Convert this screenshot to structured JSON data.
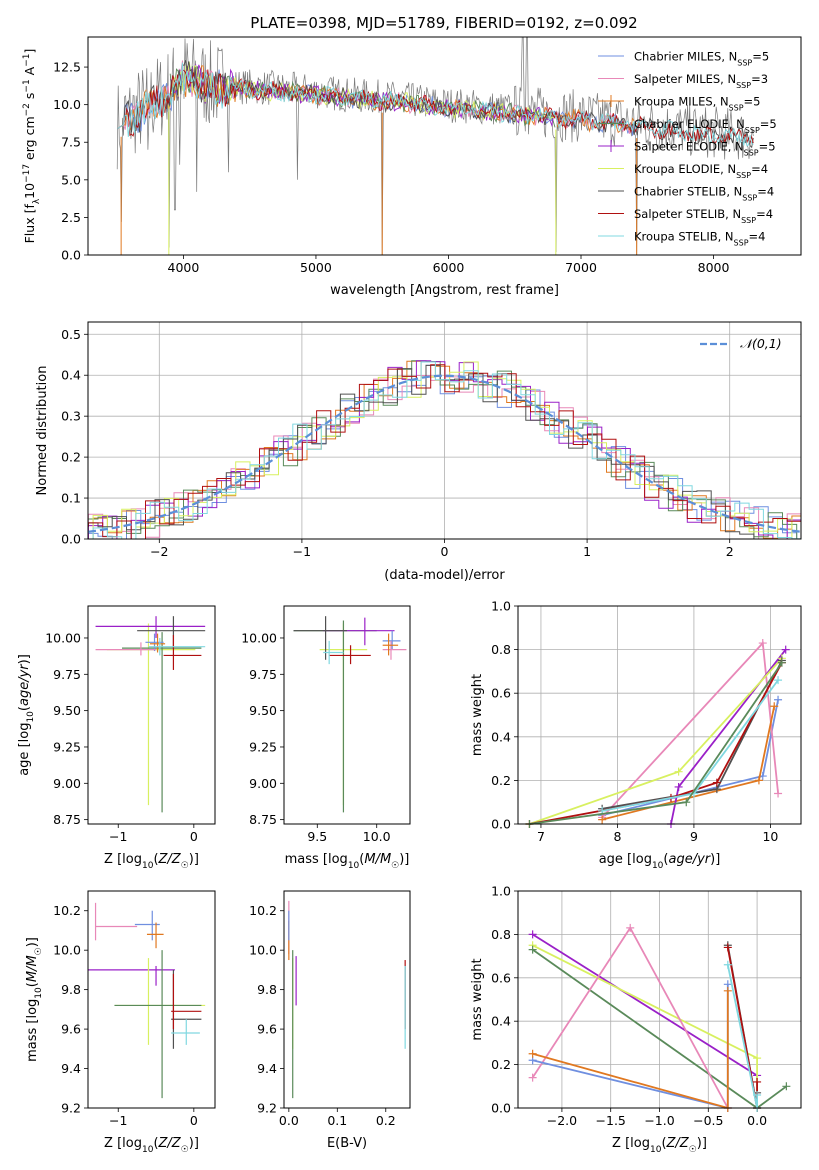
{
  "figure_title": "PLATE=0398, MJD=51789, FIBERID=0192, z=0.092",
  "colors": {
    "chabrier_miles": "#6f8fe0",
    "salpeter_miles": "#e888b8",
    "kroupa_miles": "#e07820",
    "chabrier_elodie": "#5a8a5a",
    "salpeter_elodie": "#9a20c8",
    "kroupa_elodie": "#d8f060",
    "chabrier_stelib": "#505050",
    "salpeter_stelib": "#b01010",
    "kroupa_stelib": "#80d8e0",
    "normal_curve": "#5b8fd8",
    "grid": "#b0b0b0"
  },
  "chart_data": [
    {
      "id": "spectrum",
      "type": "line",
      "title": "PLATE=0398, MJD=51789, FIBERID=0192, z=0.092",
      "xlabel": "wavelength [Angstrom, rest frame]",
      "ylabel": "Flux [f_λ 10^-17 erg cm^-2 s^-1 A^-1]",
      "xlim": [
        3280,
        8660
      ],
      "ylim": [
        0,
        14.5
      ],
      "xticks": [
        4000,
        5000,
        6000,
        7000,
        8000
      ],
      "yticks": [
        0.0,
        2.5,
        5.0,
        7.5,
        10.0,
        12.5
      ],
      "grid": false,
      "legend": "top-right",
      "legend_entries": [
        "Chabrier MILES, N_SSP=5",
        "Salpeter MILES, N_SSP=3",
        "Kroupa MILES, N_SSP=5",
        "Chabrier ELODIE, N_SSP=5",
        "Salpeter ELODIE, N_SSP=5",
        "Kroupa ELODIE, N_SSP=4",
        "Chabrier STELIB, N_SSP=4",
        "Salpeter STELIB, N_SSP=4",
        "Kroupa STELIB, N_SSP=4"
      ],
      "continuum": [
        [
          3500,
          8.7
        ],
        [
          3700,
          9.8
        ],
        [
          3900,
          11.0
        ],
        [
          4000,
          12.0
        ],
        [
          4200,
          11.3
        ],
        [
          4500,
          11.2
        ],
        [
          4800,
          11.0
        ],
        [
          5000,
          10.9
        ],
        [
          5300,
          10.6
        ],
        [
          5600,
          10.4
        ],
        [
          6000,
          10.0
        ],
        [
          6300,
          9.8
        ],
        [
          6600,
          9.5
        ],
        [
          7000,
          9.2
        ],
        [
          7400,
          8.8
        ],
        [
          7800,
          8.3
        ],
        [
          8300,
          7.9
        ]
      ],
      "absorption_dips": [
        [
          3530,
          2.2
        ],
        [
          3730,
          7.0
        ],
        [
          3890,
          0.5
        ],
        [
          3935,
          3.0
        ],
        [
          3970,
          6.0
        ],
        [
          4100,
          4.2
        ],
        [
          4340,
          5.5
        ],
        [
          4860,
          5.0
        ],
        [
          5500,
          0.0
        ],
        [
          6810,
          0.2
        ],
        [
          7420,
          0.0
        ]
      ]
    },
    {
      "id": "residuals",
      "type": "histogram",
      "xlabel": "(data-model)/error",
      "ylabel": "Normed distribution",
      "xlim": [
        -2.5,
        2.5
      ],
      "ylim": [
        0,
        0.53
      ],
      "xticks": [
        -2,
        -1,
        0,
        1,
        2
      ],
      "yticks": [
        0.0,
        0.1,
        0.2,
        0.3,
        0.4,
        0.5
      ],
      "grid": true,
      "legend": "top-right",
      "legend_entries": [
        "𝒩(0,1)"
      ],
      "bin_width": 0.1
    },
    {
      "id": "age_vs_Z",
      "type": "errorbar",
      "xlabel": "Z [log10(Z/Z☉)]",
      "ylabel": "age  [log10(age/yr)]",
      "xlim": [
        -1.4,
        0.28
      ],
      "ylim": [
        8.72,
        10.22
      ],
      "xticks": [
        -1,
        0
      ],
      "yticks": [
        8.75,
        9.0,
        9.25,
        9.5,
        9.75,
        10.0
      ],
      "points": [
        {
          "c": "kroupa_elodie",
          "x": -0.6,
          "y": 9.92,
          "xe": [
            -1.15,
            0.02
          ],
          "ye": [
            8.85,
            10.1
          ]
        },
        {
          "c": "chabrier_elodie",
          "x": -0.42,
          "y": 9.93,
          "xe": [
            -0.95,
            0.1
          ],
          "ye": [
            8.8,
            10.04
          ]
        },
        {
          "c": "salpeter_elodie",
          "x": -0.5,
          "y": 10.08,
          "xe": [
            -1.3,
            0.15
          ],
          "ye": [
            10.0,
            10.15
          ]
        },
        {
          "c": "chabrier_miles",
          "x": -0.52,
          "y": 9.97,
          "xe": [
            -0.64,
            -0.4
          ],
          "ye": [
            9.91,
            10.03
          ]
        },
        {
          "c": "salpeter_miles",
          "x": -0.7,
          "y": 9.92,
          "xe": [
            -1.3,
            -0.5
          ],
          "ye": [
            9.88,
            9.97
          ]
        },
        {
          "c": "kroupa_miles",
          "x": -0.48,
          "y": 9.96,
          "xe": [
            -0.58,
            -0.38
          ],
          "ye": [
            9.9,
            10.03
          ]
        },
        {
          "c": "chabrier_stelib",
          "x": -0.27,
          "y": 10.05,
          "xe": [
            -0.75,
            0.15
          ],
          "ye": [
            9.93,
            10.15
          ]
        },
        {
          "c": "salpeter_stelib",
          "x": -0.27,
          "y": 9.88,
          "xe": [
            -0.4,
            0.1
          ],
          "ye": [
            9.78,
            10.02
          ]
        },
        {
          "c": "kroupa_stelib",
          "x": -0.45,
          "y": 9.94,
          "xe": [
            -0.6,
            0.15
          ],
          "ye": [
            9.88,
            10.0
          ]
        }
      ]
    },
    {
      "id": "age_vs_mass",
      "type": "errorbar",
      "xlabel": "mass [log10(M/M☉)]",
      "ylabel": "",
      "xlim": [
        9.22,
        10.28
      ],
      "ylim": [
        8.72,
        10.22
      ],
      "xticks": [
        9.5,
        10.0
      ],
      "yticks": [
        8.75,
        9.0,
        9.25,
        9.5,
        9.75,
        10.0
      ],
      "points": [
        {
          "c": "kroupa_elodie",
          "x": 9.72,
          "y": 9.92,
          "xe": [
            9.52,
            9.92
          ],
          "ye": [
            8.85,
            10.1
          ]
        },
        {
          "c": "chabrier_elodie",
          "x": 9.72,
          "y": 10.05,
          "xe": [
            9.3,
            10.0
          ],
          "ye": [
            8.8,
            10.12
          ]
        },
        {
          "c": "salpeter_elodie",
          "x": 9.9,
          "y": 10.05,
          "xe": [
            9.55,
            10.15
          ],
          "ye": [
            9.95,
            10.14
          ]
        },
        {
          "c": "chabrier_miles",
          "x": 10.13,
          "y": 9.98,
          "xe": [
            10.05,
            10.2
          ],
          "ye": [
            9.92,
            10.05
          ]
        },
        {
          "c": "salpeter_miles",
          "x": 10.12,
          "y": 9.92,
          "xe": [
            10.05,
            10.25
          ],
          "ye": [
            9.85,
            9.98
          ]
        },
        {
          "c": "kroupa_miles",
          "x": 10.1,
          "y": 9.95,
          "xe": [
            10.05,
            10.18
          ],
          "ye": [
            9.88,
            10.03
          ]
        },
        {
          "c": "chabrier_stelib",
          "x": 9.57,
          "y": 10.05,
          "xe": [
            9.3,
            9.75
          ],
          "ye": [
            9.85,
            10.15
          ]
        },
        {
          "c": "salpeter_stelib",
          "x": 9.78,
          "y": 9.88,
          "xe": [
            9.6,
            9.95
          ],
          "ye": [
            9.82,
            9.95
          ]
        },
        {
          "c": "kroupa_stelib",
          "x": 9.6,
          "y": 9.9,
          "xe": [
            9.55,
            9.72
          ],
          "ye": [
            9.82,
            9.98
          ]
        }
      ]
    },
    {
      "id": "weight_vs_age",
      "type": "line",
      "xlabel": "age  [log10(age/yr)]",
      "ylabel": "mass weight",
      "xlim": [
        6.7,
        10.4
      ],
      "ylim": [
        0,
        1
      ],
      "xticks": [
        7,
        8,
        9,
        10
      ],
      "yticks": [
        0.0,
        0.2,
        0.4,
        0.6,
        0.8,
        1.0
      ],
      "grid": true,
      "series": [
        {
          "c": "chabrier_miles",
          "x": [
            7.8,
            9.9,
            10.1
          ],
          "y": [
            0.04,
            0.22,
            0.57
          ]
        },
        {
          "c": "salpeter_miles",
          "x": [
            7.8,
            9.9,
            10.1
          ],
          "y": [
            0.03,
            0.83,
            0.14
          ]
        },
        {
          "c": "kroupa_miles",
          "x": [
            7.8,
            9.85,
            10.05
          ],
          "y": [
            0.02,
            0.2,
            0.54
          ]
        },
        {
          "c": "chabrier_elodie",
          "x": 6.85,
          "y": 0
        },
        {
          "c": "salpeter_elodie",
          "x": [
            8.7,
            8.8,
            10.2
          ],
          "y": [
            0.0,
            0.17,
            0.8
          ]
        },
        {
          "c": "kroupa_elodie",
          "x": [
            6.85,
            8.8,
            10.15
          ],
          "y": [
            0.0,
            0.24,
            0.76
          ]
        },
        {
          "c": "chabrier_stelib",
          "x": [
            7.8,
            9.3,
            10.15
          ],
          "y": [
            0.07,
            0.16,
            0.75
          ]
        },
        {
          "c": "salpeter_stelib",
          "x": [
            6.85,
            8.7,
            9.3,
            10.15
          ],
          "y": [
            0.0,
            0.12,
            0.19,
            0.74
          ]
        },
        {
          "c": "kroupa_stelib",
          "x": [
            7.8,
            9.0,
            10.1
          ],
          "y": [
            0.06,
            0.14,
            0.66
          ]
        }
      ],
      "green_series": {
        "x": [
          6.85,
          8.9,
          10.15
        ],
        "y": [
          0.0,
          0.1,
          0.74
        ]
      }
    },
    {
      "id": "mass_vs_Z",
      "type": "errorbar",
      "xlabel": "Z [log10(Z/Z☉)]",
      "ylabel": "mass [log10(M/M☉)]",
      "xlim": [
        -1.4,
        0.28
      ],
      "ylim": [
        9.2,
        10.3
      ],
      "xticks": [
        -1,
        0
      ],
      "yticks": [
        9.2,
        9.4,
        9.6,
        9.8,
        10.0,
        10.2
      ],
      "points": [
        {
          "c": "salpeter_miles",
          "x": -1.3,
          "y": 10.12,
          "xe": [
            -1.3,
            -0.75
          ],
          "ye": [
            10.05,
            10.24
          ]
        },
        {
          "c": "chabrier_miles",
          "x": -0.55,
          "y": 10.13,
          "xe": [
            -0.78,
            -0.45
          ],
          "ye": [
            10.05,
            10.2
          ]
        },
        {
          "c": "kroupa_miles",
          "x": -0.5,
          "y": 10.08,
          "xe": [
            -0.62,
            -0.4
          ],
          "ye": [
            10.01,
            10.14
          ]
        },
        {
          "c": "salpeter_elodie",
          "x": -0.5,
          "y": 9.9,
          "xe": [
            -1.4,
            -0.25
          ],
          "ye": [
            9.82,
            9.92
          ]
        },
        {
          "c": "kroupa_elodie",
          "x": -0.6,
          "y": 9.72,
          "xe": [
            -1.05,
            0.15
          ],
          "ye": [
            9.52,
            9.96
          ]
        },
        {
          "c": "chabrier_elodie",
          "x": -0.42,
          "y": 9.72,
          "xe": [
            -1.05,
            0.1
          ],
          "ye": [
            9.25,
            10.0
          ]
        },
        {
          "c": "chabrier_stelib",
          "x": -0.27,
          "y": 9.65,
          "xe": [
            -0.3,
            0.1
          ],
          "ye": [
            9.5,
            9.9
          ]
        },
        {
          "c": "salpeter_stelib",
          "x": -0.27,
          "y": 9.69,
          "xe": [
            -0.3,
            0.1
          ],
          "ye": [
            9.6,
            9.88
          ]
        },
        {
          "c": "kroupa_stelib",
          "x": -0.1,
          "y": 9.58,
          "xe": [
            -0.3,
            0.08
          ],
          "ye": [
            9.52,
            9.65
          ]
        }
      ]
    },
    {
      "id": "mass_vs_EBV",
      "type": "errorbar",
      "xlabel": "E(B-V)",
      "ylabel": "",
      "xlim": [
        -0.01,
        0.25
      ],
      "ylim": [
        9.2,
        10.3
      ],
      "xticks": [
        0.0,
        0.1,
        0.2
      ],
      "yticks": [
        9.2,
        9.4,
        9.6,
        9.8,
        10.0,
        10.2
      ],
      "points": [
        {
          "c": "salpeter_miles",
          "x": 0.0,
          "y": 10.1,
          "ye": [
            9.98,
            10.25
          ]
        },
        {
          "c": "kroupa_miles",
          "x": 0.0,
          "y": 10.05,
          "ye": [
            9.95,
            10.15
          ]
        },
        {
          "c": "kroupa_elodie",
          "x": 0.008,
          "y": 9.72,
          "ye": [
            9.5,
            9.96
          ]
        },
        {
          "c": "chabrier_elodie",
          "x": 0.008,
          "y": 9.72,
          "ye": [
            9.25,
            10.0
          ]
        },
        {
          "c": "salpeter_elodie",
          "x": 0.015,
          "y": 9.9,
          "ye": [
            9.72,
            9.97
          ]
        },
        {
          "c": "salpeter_stelib",
          "x": 0.24,
          "y": 9.8,
          "ye": [
            9.6,
            9.95
          ]
        },
        {
          "c": "kroupa_stelib",
          "x": 0.24,
          "y": 9.58,
          "ye": [
            9.5,
            9.92
          ]
        },
        {
          "c": "chabrier_miles",
          "x": 0.0,
          "y": 10.13,
          "ye": [
            10.05,
            10.2
          ]
        }
      ]
    },
    {
      "id": "weight_vs_Z",
      "type": "line",
      "xlabel": "Z [log10(Z/Z☉)]",
      "ylabel": "mass weight",
      "xlim": [
        -2.45,
        0.45
      ],
      "ylim": [
        0,
        1
      ],
      "xticks": [
        -2.0,
        -1.5,
        -1.0,
        -0.5,
        0.0
      ],
      "yticks": [
        0.0,
        0.2,
        0.4,
        0.6,
        0.8,
        1.0
      ],
      "grid": true,
      "series": [
        {
          "c": "salpeter_elodie",
          "x": [
            -2.3,
            0.0,
            0.0
          ],
          "y": [
            0.8,
            0.15,
            0.0
          ]
        },
        {
          "c": "kroupa_elodie",
          "x": [
            -2.3,
            0.0,
            0.0
          ],
          "y": [
            0.75,
            0.23,
            0.0
          ]
        },
        {
          "c": "chabrier_elodie",
          "x": [
            -2.3,
            0.0,
            0.3
          ],
          "y": [
            0.73,
            0.0,
            0.1
          ]
        },
        {
          "c": "salpeter_miles",
          "x": [
            -2.3,
            -1.3,
            -0.3
          ],
          "y": [
            0.14,
            0.83,
            0.0
          ]
        },
        {
          "c": "chabrier_miles",
          "x": [
            -2.3,
            -0.3,
            -0.3
          ],
          "y": [
            0.22,
            0.0,
            0.57
          ]
        },
        {
          "c": "kroupa_miles",
          "x": [
            -2.3,
            -0.3,
            -0.3
          ],
          "y": [
            0.25,
            0.0,
            0.54
          ]
        },
        {
          "c": "chabrier_stelib",
          "x": [
            -0.3,
            0.0,
            0.0
          ],
          "y": [
            0.75,
            0.0,
            0.07
          ]
        },
        {
          "c": "salpeter_stelib",
          "x": [
            -0.3,
            0.0,
            0.0
          ],
          "y": [
            0.74,
            0.0,
            0.12
          ]
        },
        {
          "c": "kroupa_stelib",
          "x": [
            -0.3,
            0.0,
            0.0
          ],
          "y": [
            0.66,
            0.0,
            0.06
          ]
        }
      ]
    }
  ]
}
